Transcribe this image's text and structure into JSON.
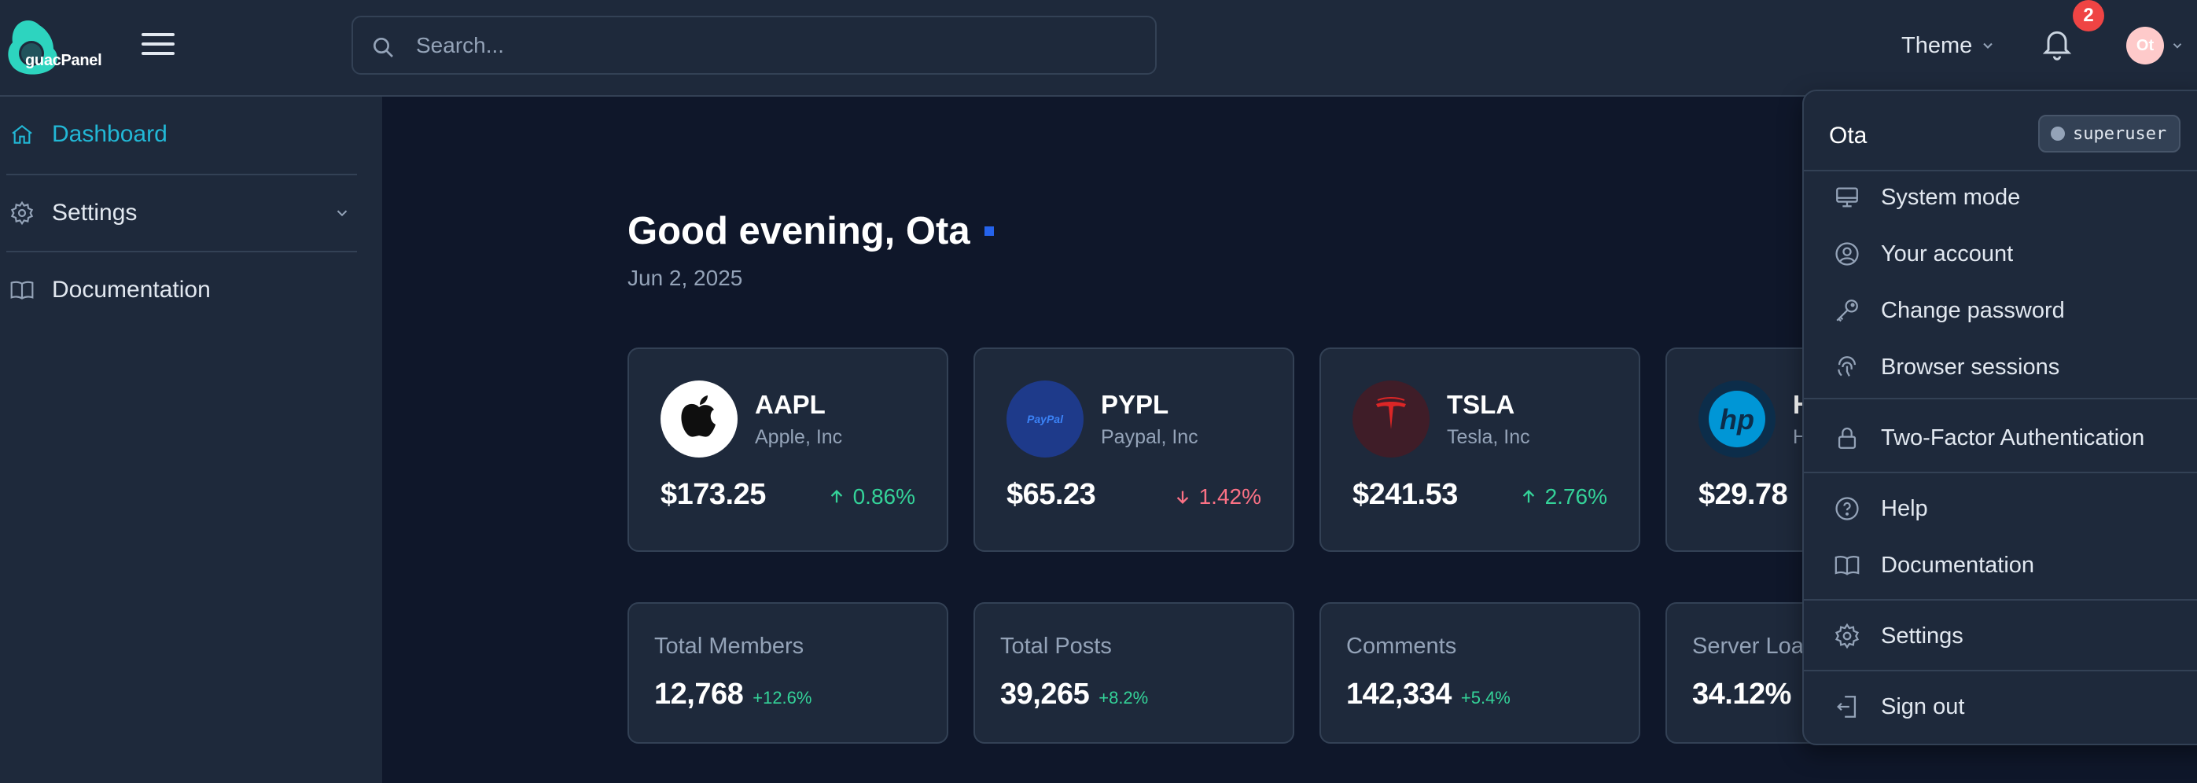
{
  "brand": {
    "name_prefix": "guac",
    "name_suffix": "Panel",
    "accent": "#2dd4bf"
  },
  "search": {
    "placeholder": "Search..."
  },
  "header": {
    "theme_label": "Theme",
    "notifications_count": "2",
    "avatar_initials": "Ot"
  },
  "sidebar": {
    "items": [
      {
        "label": "Dashboard",
        "icon": "home-icon",
        "active": true
      },
      {
        "label": "Settings",
        "icon": "gear-icon",
        "expandable": true
      },
      {
        "label": "Documentation",
        "icon": "book-icon"
      }
    ]
  },
  "main": {
    "greeting": "Good evening, Ota",
    "date": "Jun 2, 2025",
    "stocks": [
      {
        "ticker": "AAPL",
        "name": "Apple, Inc",
        "price": "$173.25",
        "change": "0.86%",
        "direction": "up",
        "logo": "apple-logo"
      },
      {
        "ticker": "PYPL",
        "name": "Paypal, Inc",
        "price": "$65.23",
        "change": "1.42%",
        "direction": "down",
        "logo": "paypal-logo"
      },
      {
        "ticker": "TSLA",
        "name": "Tesla, Inc",
        "price": "$241.53",
        "change": "2.76%",
        "direction": "up",
        "logo": "tesla-logo"
      },
      {
        "ticker": "H",
        "name": "H",
        "price": "$29.78",
        "logo": "hp-logo"
      }
    ],
    "stats": [
      {
        "label": "Total Members",
        "value": "12,768",
        "change": "+12.6%"
      },
      {
        "label": "Total Posts",
        "value": "39,265",
        "change": "+8.2%"
      },
      {
        "label": "Comments",
        "value": "142,334",
        "change": "+5.4%"
      },
      {
        "label": "Server Load",
        "value": "34.12%"
      }
    ]
  },
  "user_menu": {
    "username": "Ota",
    "role": "superuser",
    "items": [
      {
        "label": "System mode",
        "icon": "monitor-icon"
      },
      {
        "label": "Your account",
        "icon": "user-circle-icon"
      },
      {
        "label": "Change password",
        "icon": "key-icon"
      },
      {
        "label": "Browser sessions",
        "icon": "fingerprint-icon"
      },
      {
        "label": "Two-Factor Authentication",
        "icon": "lock-icon"
      },
      {
        "label": "Help",
        "icon": "help-circle-icon"
      },
      {
        "label": "Documentation",
        "icon": "book-icon"
      },
      {
        "label": "Settings",
        "icon": "gear-icon"
      },
      {
        "label": "Sign out",
        "icon": "sign-out-icon"
      }
    ]
  },
  "colors": {
    "background": "#0f172a",
    "surface": "#1e293b",
    "border": "#334155",
    "active_link": "#22b8d6",
    "positive": "#34d399",
    "negative": "#fb7185",
    "badge": "#ef4444"
  }
}
